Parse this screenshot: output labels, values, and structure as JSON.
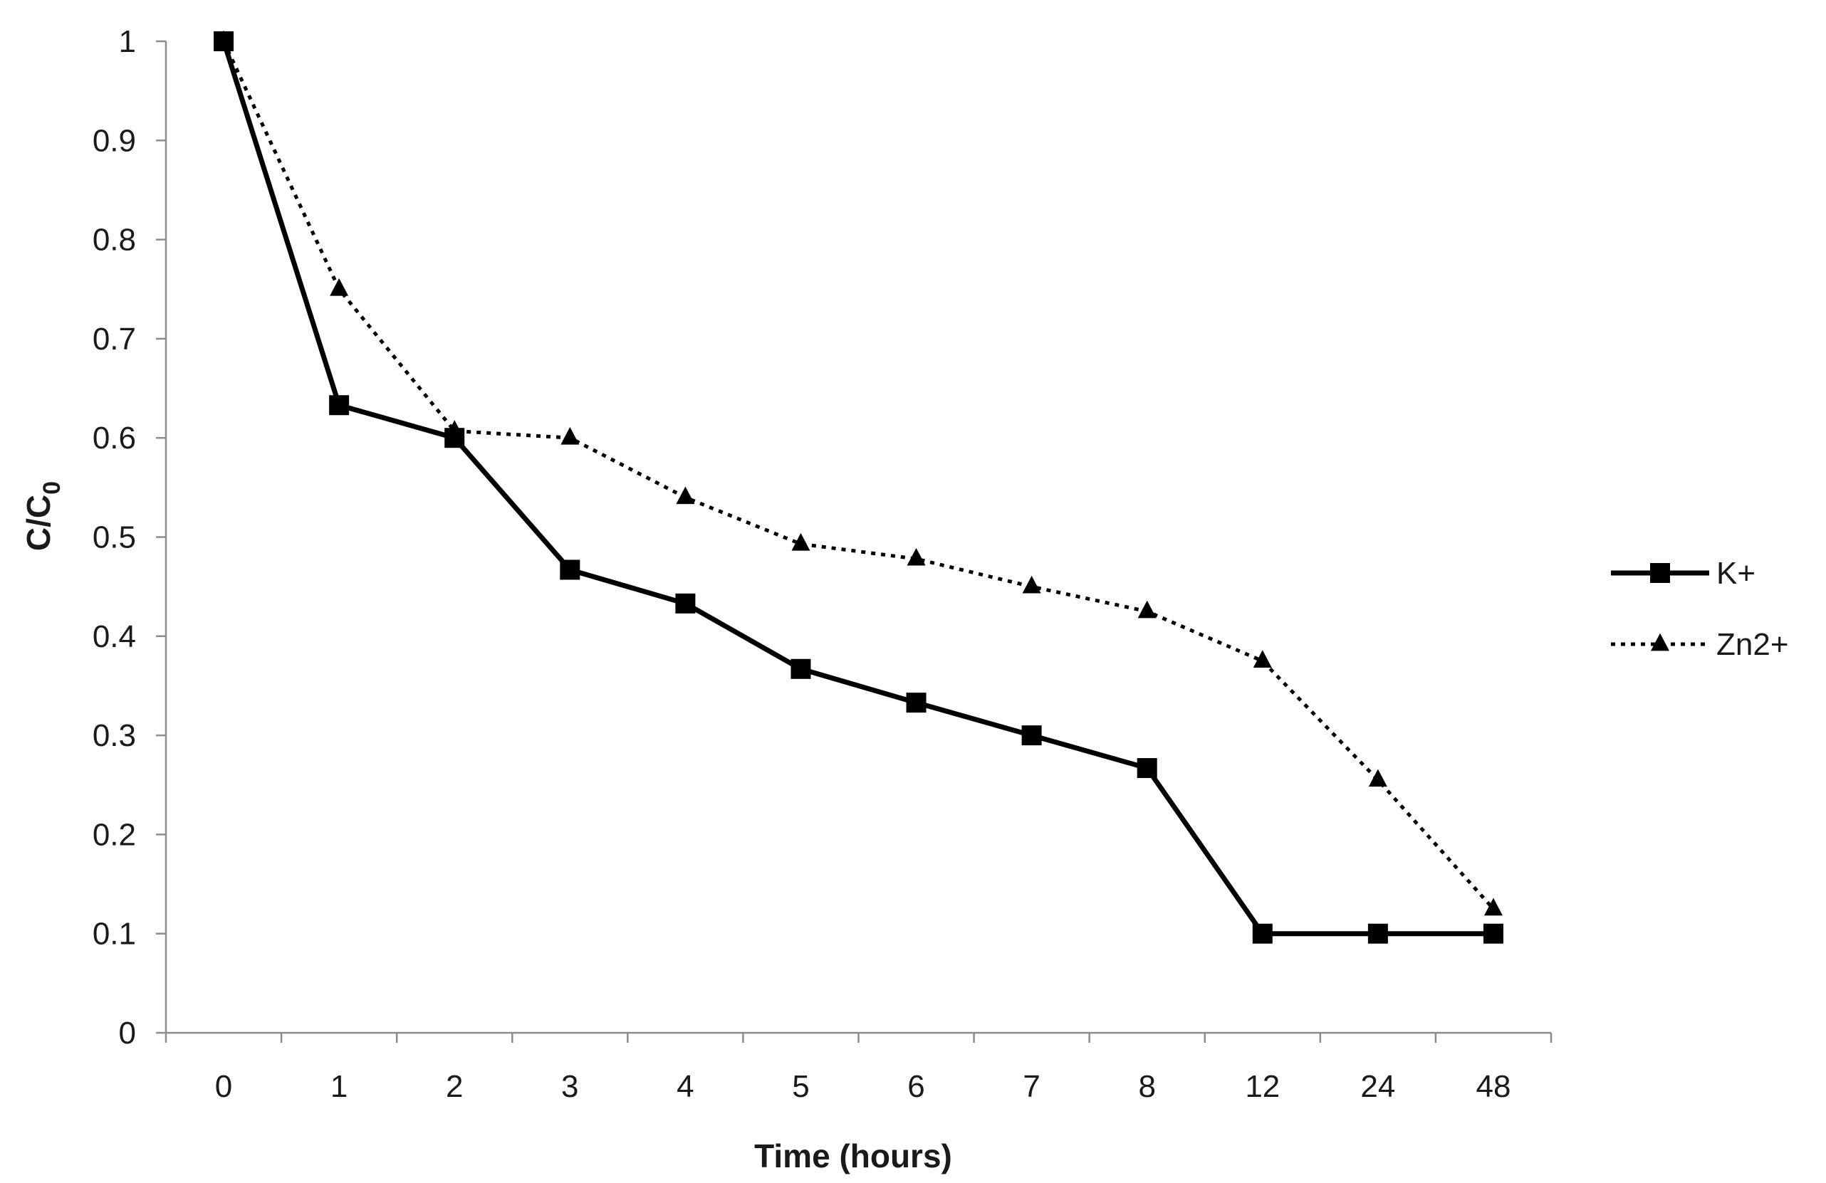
{
  "chart_data": {
    "type": "line",
    "title": "",
    "xlabel": "Time (hours)",
    "ylabel_main": "C/C",
    "ylabel_subscript": "0",
    "categories": [
      "0",
      "1",
      "2",
      "3",
      "4",
      "5",
      "6",
      "7",
      "8",
      "12",
      "24",
      "48"
    ],
    "ylim": [
      0,
      1
    ],
    "yticks": [
      0,
      0.1,
      0.2,
      0.3,
      0.4,
      0.5,
      0.6,
      0.7,
      0.8,
      0.9,
      1
    ],
    "ytick_labels": [
      "0",
      "0.1",
      "0.2",
      "0.3",
      "0.4",
      "0.5",
      "0.6",
      "0.7",
      "0.8",
      "0.9",
      "1"
    ],
    "grid": false,
    "legend_position": "right",
    "series": [
      {
        "name": "K+",
        "marker": "square",
        "line_style": "solid",
        "color": "#000000",
        "values": [
          1.0,
          0.633,
          0.6,
          0.467,
          0.433,
          0.367,
          0.333,
          0.3,
          0.267,
          0.1,
          0.1,
          0.1
        ]
      },
      {
        "name": "Zn2+",
        "marker": "triangle",
        "line_style": "dotted",
        "color": "#000000",
        "values": [
          1.0,
          0.75,
          0.607,
          0.6,
          0.54,
          0.493,
          0.478,
          0.45,
          0.425,
          0.375,
          0.255,
          0.125
        ]
      }
    ]
  }
}
